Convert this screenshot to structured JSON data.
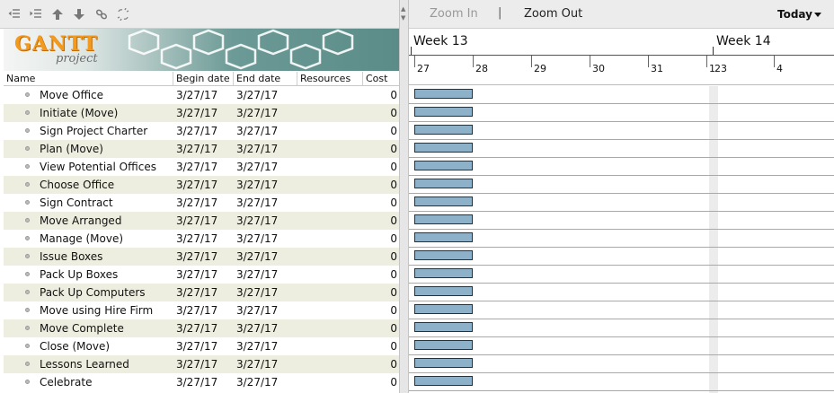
{
  "timeline": {
    "zoom_in": "Zoom In",
    "separator": "|",
    "zoom_out": "Zoom Out",
    "today": "Today",
    "weeks": [
      "Week 13",
      "Week 14"
    ],
    "days": [
      "27",
      "28",
      "29",
      "30",
      "31",
      "1",
      "23",
      "4"
    ]
  },
  "logo": {
    "word": "GANTT",
    "sub": "project"
  },
  "columns": {
    "name": "Name",
    "begin": "Begin date",
    "end": "End date",
    "resources": "Resources",
    "cost": "Cost"
  },
  "tasks": [
    {
      "name": "Move Office",
      "begin": "3/27/17",
      "end": "3/27/17",
      "cost": "0"
    },
    {
      "name": "Initiate (Move)",
      "begin": "3/27/17",
      "end": "3/27/17",
      "cost": "0"
    },
    {
      "name": "Sign Project Charter",
      "begin": "3/27/17",
      "end": "3/27/17",
      "cost": "0"
    },
    {
      "name": "Plan (Move)",
      "begin": "3/27/17",
      "end": "3/27/17",
      "cost": "0"
    },
    {
      "name": "View Potential Offices",
      "begin": "3/27/17",
      "end": "3/27/17",
      "cost": "0"
    },
    {
      "name": "Choose Office",
      "begin": "3/27/17",
      "end": "3/27/17",
      "cost": "0"
    },
    {
      "name": "Sign Contract",
      "begin": "3/27/17",
      "end": "3/27/17",
      "cost": "0"
    },
    {
      "name": "Move Arranged",
      "begin": "3/27/17",
      "end": "3/27/17",
      "cost": "0"
    },
    {
      "name": "Manage (Move)",
      "begin": "3/27/17",
      "end": "3/27/17",
      "cost": "0"
    },
    {
      "name": "Issue Boxes",
      "begin": "3/27/17",
      "end": "3/27/17",
      "cost": "0"
    },
    {
      "name": "Pack Up Boxes",
      "begin": "3/27/17",
      "end": "3/27/17",
      "cost": "0"
    },
    {
      "name": "Pack Up Computers",
      "begin": "3/27/17",
      "end": "3/27/17",
      "cost": "0"
    },
    {
      "name": "Move using Hire Firm",
      "begin": "3/27/17",
      "end": "3/27/17",
      "cost": "0"
    },
    {
      "name": "Move Complete",
      "begin": "3/27/17",
      "end": "3/27/17",
      "cost": "0"
    },
    {
      "name": "Close (Move)",
      "begin": "3/27/17",
      "end": "3/27/17",
      "cost": "0"
    },
    {
      "name": "Lessons Learned",
      "begin": "3/27/17",
      "end": "3/27/17",
      "cost": "0"
    },
    {
      "name": "Celebrate",
      "begin": "3/27/17",
      "end": "3/27/17",
      "cost": "0"
    }
  ],
  "icons": [
    "unindent-icon",
    "indent-icon",
    "move-up-icon",
    "move-down-icon",
    "link-icon",
    "unlink-icon"
  ],
  "colors": {
    "bar_fill": "#8db1c9",
    "alt_row": "#eeeee0",
    "logo_orange": "#f39a1e",
    "logo_teal": "#5b8c88"
  }
}
